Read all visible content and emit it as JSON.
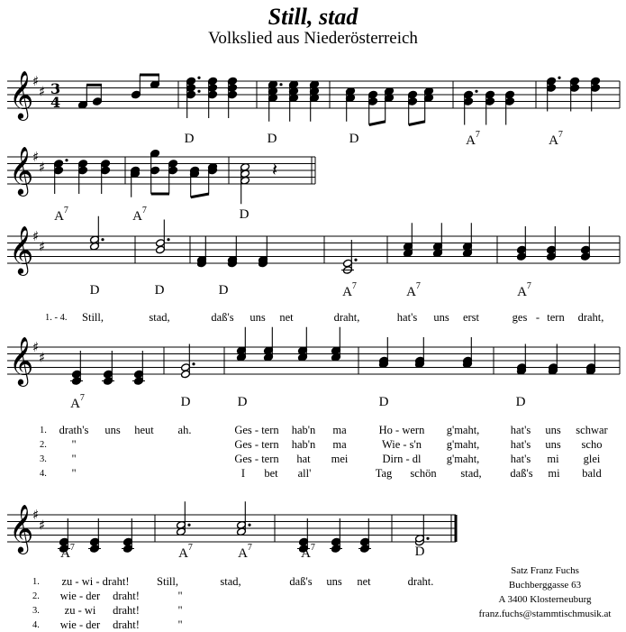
{
  "title": "Still, stad",
  "subtitle": "Volkslied aus Niederösterreich",
  "time_signature": {
    "top": "3",
    "bottom": "4"
  },
  "chords": {
    "row1": [
      "D",
      "D",
      "D",
      "A7",
      "A7"
    ],
    "row2": [
      "A7",
      "A7",
      "D"
    ],
    "row3": [
      "D",
      "D",
      "D",
      "A7",
      "A7",
      "A7"
    ],
    "row4": [
      "A7",
      "D",
      "D",
      "D",
      "D"
    ],
    "row5": [
      "A7",
      "A7",
      "A7",
      "A7",
      "D"
    ]
  },
  "verse_label_row3": "1. - 4.",
  "lyrics_row3": [
    "Still,",
    "stad,",
    "daß's",
    "uns",
    "net",
    "draht,",
    "hat's",
    "uns",
    "erst",
    "ges",
    "-",
    "tern",
    "draht,"
  ],
  "verse_labels": [
    "1.",
    "2.",
    "3.",
    "4."
  ],
  "lyrics_row4": [
    [
      "drath's",
      "uns",
      "heut",
      "ah.",
      "Ges - tern",
      "hab'n",
      "ma",
      "Ho - wern",
      "g'maht,",
      "hat's",
      "uns",
      "schwar"
    ],
    [
      "\"",
      "Ges - tern",
      "hab'n",
      "ma",
      "Wie - s'n",
      "g'maht,",
      "hat's",
      "uns",
      "scho"
    ],
    [
      "\"",
      "Ges - tern",
      "hat",
      "mei",
      "Dirn - dl",
      "g'maht,",
      "hat's",
      "mi",
      "glei"
    ],
    [
      "\"",
      "I",
      "bet",
      "all'",
      "Tag",
      "schön",
      "stad,",
      "daß's",
      "mi",
      "bald"
    ]
  ],
  "lyrics_row5": [
    [
      "zu - wi - draht!",
      "Still,",
      "stad,",
      "daß's",
      "uns",
      "net",
      "draht."
    ],
    [
      "wie - der",
      "draht!",
      "\""
    ],
    [
      "zu - wi",
      "draht!",
      "\""
    ],
    [
      "wie - der",
      "draht!",
      "\""
    ]
  ],
  "credits": [
    "Satz Franz Fuchs",
    "Buchberggasse 63",
    "A 3400 Klosterneuburg",
    "franz.fuchs@stammtischmusik.at"
  ]
}
